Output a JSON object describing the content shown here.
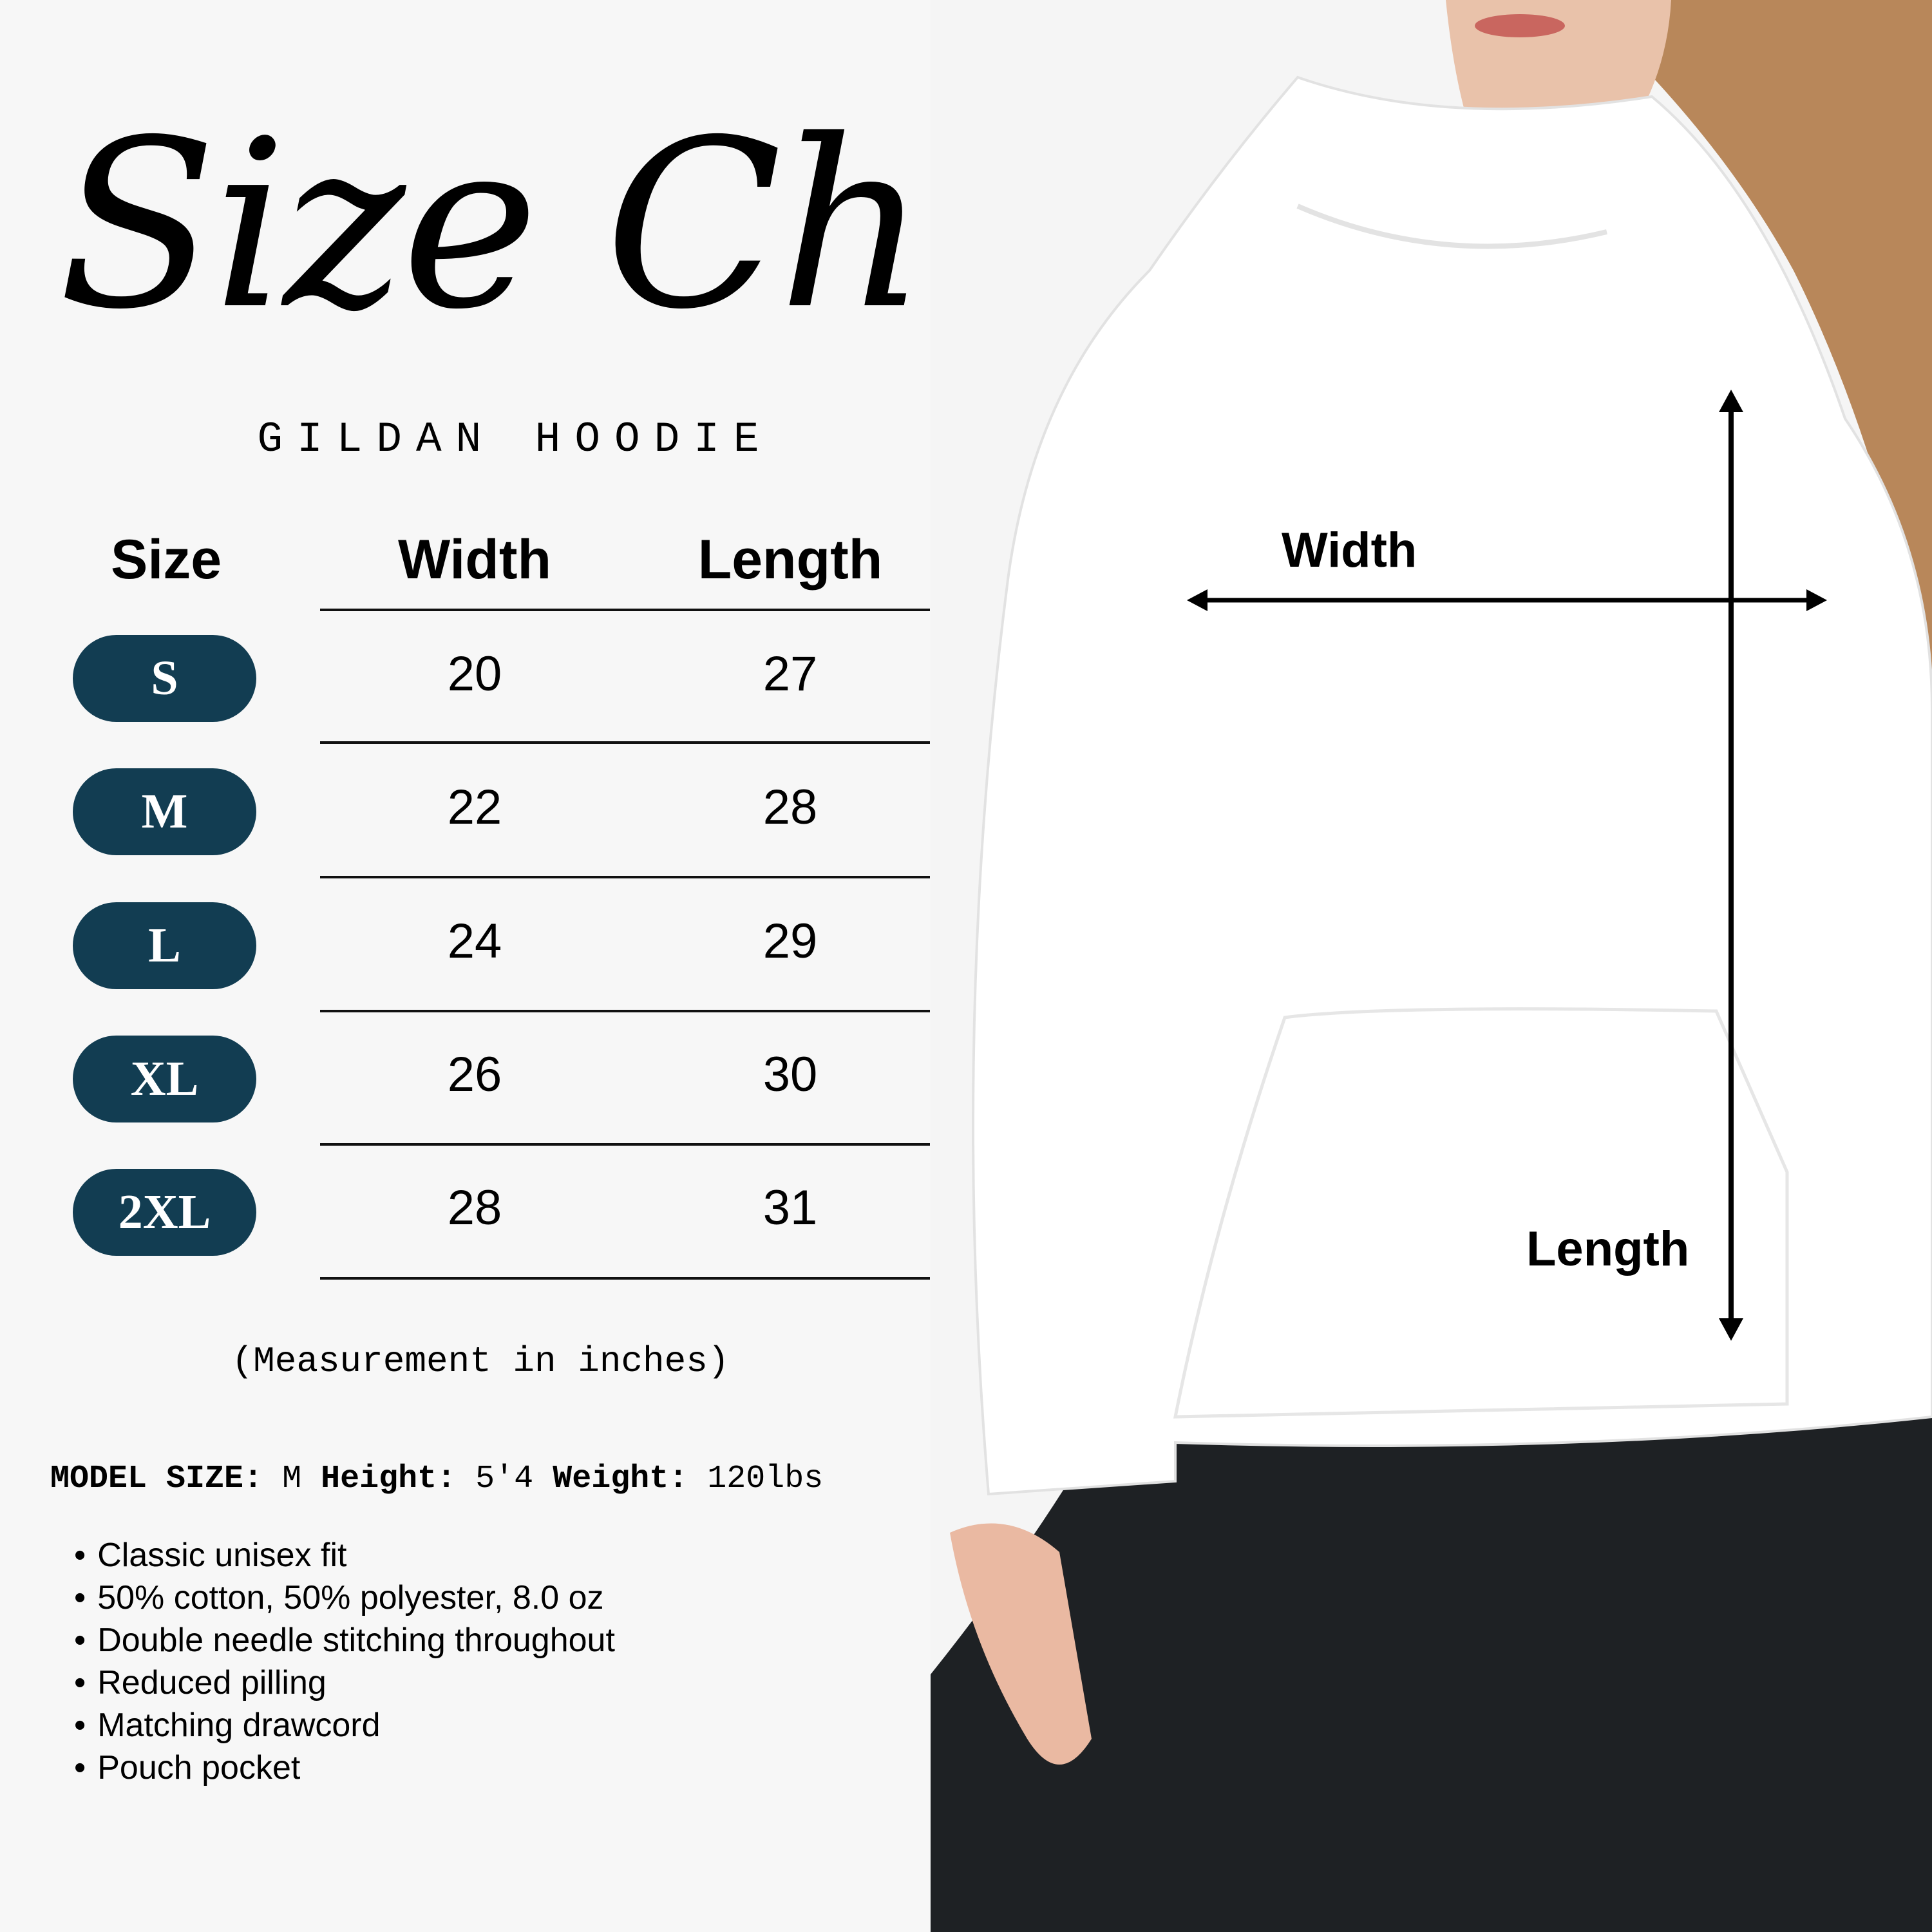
{
  "title": "Size Chart",
  "subtitle": "GILDAN HOODIE",
  "table": {
    "headers": [
      "Size",
      "Width",
      "Length"
    ],
    "rows": [
      {
        "size": "S",
        "width": "20",
        "length": "27"
      },
      {
        "size": "M",
        "width": "22",
        "length": "28"
      },
      {
        "size": "L",
        "width": "24",
        "length": "29"
      },
      {
        "size": "XL",
        "width": "26",
        "length": "30"
      },
      {
        "size": "2XL",
        "width": "28",
        "length": "31"
      }
    ]
  },
  "note": "(Measurement in inches)",
  "model": {
    "size_label": "MODEL SIZE:",
    "size_value": "M",
    "height_label": "Height:",
    "height_value": "5'4",
    "weight_label": "Weight:",
    "weight_value": "120lbs"
  },
  "features": [
    "Classic unisex fit",
    "50% cotton, 50% polyester, 8.0 oz",
    "Double needle stitching throughout",
    "Reduced pilling",
    "Matching drawcord",
    "Pouch pocket"
  ],
  "photo": {
    "width_label": "Width",
    "length_label": "Length"
  },
  "colors": {
    "background": "#f7f7f7",
    "size_pill": "#123d52",
    "pill_text": "#ffffff"
  }
}
